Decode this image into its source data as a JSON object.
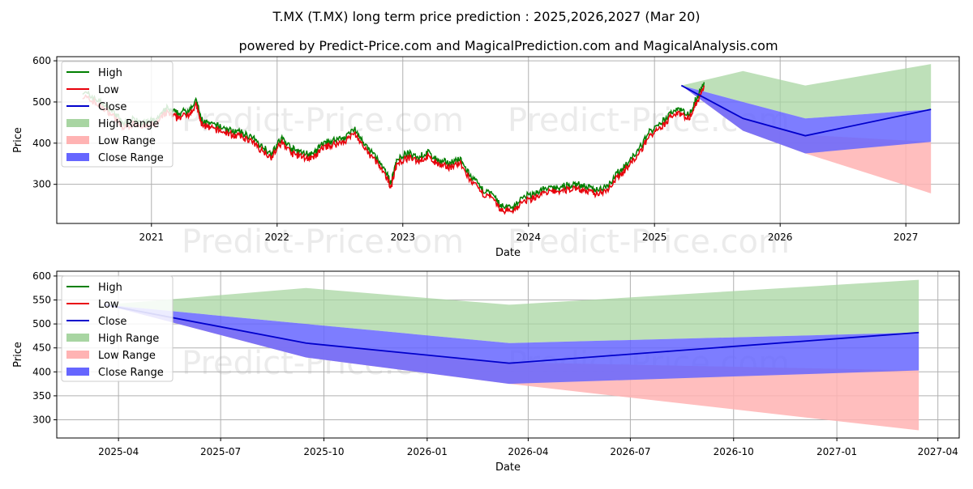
{
  "title": "T.MX (T.MX) long term price prediction : 2025,2026,2027 (Mar 20)",
  "subtitle": "powered by Predict-Price.com and MagicalPrediction.com and MagicalAnalysis.com",
  "watermark": "Predict-Price.com",
  "colors": {
    "high": "#007f00",
    "low": "#e8000b",
    "close": "#0000cc",
    "high_range": "#a8d5a2",
    "low_range": "#ffb3b3",
    "close_range": "#6666ff",
    "grid": "#b0b0b0"
  },
  "chart_data": [
    {
      "type": "line",
      "panel": "top",
      "xlabel": "Date",
      "ylabel": "Price",
      "ylim": [
        205,
        610
      ],
      "xlim": [
        "2020-04-01",
        "2027-06-05"
      ],
      "grid": true,
      "legend_position": "upper-left",
      "legend": [
        "High",
        "Low",
        "Close",
        "High Range",
        "Low Range",
        "Close Range"
      ],
      "x_ticks": [
        {
          "date": "2021-01-01",
          "label": "2021"
        },
        {
          "date": "2022-01-01",
          "label": "2022"
        },
        {
          "date": "2023-01-01",
          "label": "2023"
        },
        {
          "date": "2024-01-01",
          "label": "2024"
        },
        {
          "date": "2025-01-01",
          "label": "2025"
        },
        {
          "date": "2026-01-01",
          "label": "2026"
        },
        {
          "date": "2027-01-01",
          "label": "2027"
        }
      ],
      "y_ticks": [
        300,
        400,
        500,
        600
      ],
      "history": [
        {
          "date": "2020-06-15",
          "price": 518
        },
        {
          "date": "2020-07-15",
          "price": 505
        },
        {
          "date": "2020-08-15",
          "price": 488
        },
        {
          "date": "2020-09-15",
          "price": 468
        },
        {
          "date": "2020-10-10",
          "price": 440
        },
        {
          "date": "2020-11-15",
          "price": 452
        },
        {
          "date": "2020-12-15",
          "price": 443
        },
        {
          "date": "2021-01-15",
          "price": 450
        },
        {
          "date": "2021-02-15",
          "price": 478
        },
        {
          "date": "2021-03-15",
          "price": 465
        },
        {
          "date": "2021-04-15",
          "price": 472
        },
        {
          "date": "2021-05-12",
          "price": 495
        },
        {
          "date": "2021-05-25",
          "price": 452
        },
        {
          "date": "2021-06-15",
          "price": 440
        },
        {
          "date": "2021-07-15",
          "price": 435
        },
        {
          "date": "2021-08-15",
          "price": 425
        },
        {
          "date": "2021-09-15",
          "price": 420
        },
        {
          "date": "2021-10-15",
          "price": 410
        },
        {
          "date": "2021-11-15",
          "price": 388
        },
        {
          "date": "2021-12-15",
          "price": 370
        },
        {
          "date": "2022-01-15",
          "price": 405
        },
        {
          "date": "2022-02-15",
          "price": 378
        },
        {
          "date": "2022-03-15",
          "price": 370
        },
        {
          "date": "2022-04-15",
          "price": 365
        },
        {
          "date": "2022-05-15",
          "price": 393
        },
        {
          "date": "2022-06-15",
          "price": 400
        },
        {
          "date": "2022-07-15",
          "price": 408
        },
        {
          "date": "2022-08-15",
          "price": 428
        },
        {
          "date": "2022-09-15",
          "price": 385
        },
        {
          "date": "2022-10-15",
          "price": 360
        },
        {
          "date": "2022-11-10",
          "price": 325
        },
        {
          "date": "2022-11-28",
          "price": 298
        },
        {
          "date": "2022-12-15",
          "price": 355
        },
        {
          "date": "2023-01-15",
          "price": 368
        },
        {
          "date": "2023-02-15",
          "price": 360
        },
        {
          "date": "2023-03-15",
          "price": 370
        },
        {
          "date": "2023-04-15",
          "price": 350
        },
        {
          "date": "2023-05-15",
          "price": 345
        },
        {
          "date": "2023-06-15",
          "price": 355
        },
        {
          "date": "2023-07-15",
          "price": 315
        },
        {
          "date": "2023-08-15",
          "price": 285
        },
        {
          "date": "2023-09-15",
          "price": 270
        },
        {
          "date": "2023-10-15",
          "price": 240
        },
        {
          "date": "2023-11-15",
          "price": 238
        },
        {
          "date": "2023-12-15",
          "price": 260
        },
        {
          "date": "2024-01-15",
          "price": 270
        },
        {
          "date": "2024-02-15",
          "price": 282
        },
        {
          "date": "2024-03-15",
          "price": 285
        },
        {
          "date": "2024-04-15",
          "price": 288
        },
        {
          "date": "2024-05-15",
          "price": 295
        },
        {
          "date": "2024-06-15",
          "price": 288
        },
        {
          "date": "2024-07-15",
          "price": 280
        },
        {
          "date": "2024-08-15",
          "price": 290
        },
        {
          "date": "2024-09-15",
          "price": 320
        },
        {
          "date": "2024-10-15",
          "price": 345
        },
        {
          "date": "2024-11-15",
          "price": 375
        },
        {
          "date": "2024-12-15",
          "price": 420
        },
        {
          "date": "2025-01-15",
          "price": 435
        },
        {
          "date": "2025-02-15",
          "price": 465
        },
        {
          "date": "2025-03-10",
          "price": 480
        },
        {
          "date": "2025-04-10",
          "price": 462
        },
        {
          "date": "2025-05-05",
          "price": 505
        },
        {
          "date": "2025-05-25",
          "price": 540
        }
      ],
      "forecast": [
        {
          "date": "2025-03-20",
          "close": 540,
          "high_hi": 540,
          "high_lo": 540,
          "low_hi": 540,
          "low_lo": 540,
          "close_hi": 540,
          "close_lo": 540
        },
        {
          "date": "2025-09-15",
          "close": 460,
          "high_hi": 575,
          "high_lo": 500,
          "low_hi": 460,
          "low_lo": 430,
          "close_hi": 500,
          "close_lo": 430
        },
        {
          "date": "2026-03-15",
          "close": 418,
          "high_hi": 540,
          "high_lo": 460,
          "low_hi": 420,
          "low_lo": 375,
          "close_hi": 460,
          "close_lo": 375
        },
        {
          "date": "2027-03-15",
          "close": 482,
          "high_hi": 592,
          "high_lo": 482,
          "low_hi": 403,
          "low_lo": 278,
          "close_hi": 482,
          "close_lo": 403
        }
      ]
    },
    {
      "type": "area",
      "panel": "bottom",
      "xlabel": "Date",
      "ylabel": "Price",
      "ylim": [
        262,
        610
      ],
      "xlim": [
        "2025-02-05",
        "2027-04-20"
      ],
      "grid": true,
      "legend_position": "upper-left",
      "legend": [
        "High",
        "Low",
        "Close",
        "High Range",
        "Low Range",
        "Close Range"
      ],
      "x_ticks": [
        {
          "date": "2025-04-01",
          "label": "2025-04"
        },
        {
          "date": "2025-07-01",
          "label": "2025-07"
        },
        {
          "date": "2025-10-01",
          "label": "2025-10"
        },
        {
          "date": "2026-01-01",
          "label": "2026-01"
        },
        {
          "date": "2026-04-01",
          "label": "2026-04"
        },
        {
          "date": "2026-07-01",
          "label": "2026-07"
        },
        {
          "date": "2026-10-01",
          "label": "2026-10"
        },
        {
          "date": "2027-01-01",
          "label": "2027-01"
        },
        {
          "date": "2027-04-01",
          "label": "2027-04"
        }
      ],
      "y_ticks": [
        300,
        350,
        400,
        450,
        500,
        550,
        600
      ],
      "forecast": [
        {
          "date": "2025-03-20",
          "close": 540,
          "high_hi": 540,
          "high_lo": 540,
          "low_hi": 540,
          "low_lo": 540,
          "close_hi": 540,
          "close_lo": 540
        },
        {
          "date": "2025-09-15",
          "close": 460,
          "high_hi": 575,
          "high_lo": 500,
          "low_hi": 460,
          "low_lo": 430,
          "close_hi": 500,
          "close_lo": 430
        },
        {
          "date": "2026-03-15",
          "close": 418,
          "high_hi": 540,
          "high_lo": 460,
          "low_hi": 420,
          "low_lo": 375,
          "close_hi": 460,
          "close_lo": 375
        },
        {
          "date": "2027-03-15",
          "close": 482,
          "high_hi": 592,
          "high_lo": 482,
          "low_hi": 403,
          "low_lo": 278,
          "close_hi": 482,
          "close_lo": 403
        }
      ]
    }
  ]
}
